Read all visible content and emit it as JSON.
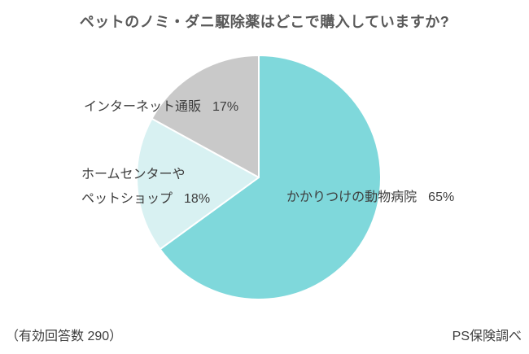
{
  "title": "ペットのノミ・ダニ駆除薬はどこで購入していますか?",
  "chart_data": {
    "type": "pie",
    "title": "ペットのノミ・ダニ駆除薬はどこで購入していますか?",
    "start_angle_deg": 0,
    "direction": "clockwise",
    "start_position": "top",
    "legend": "none",
    "stroke_color": "#ffffff",
    "stroke_width": 2,
    "slices": [
      {
        "label": "かかりつけの動物病院",
        "pct_label": "65%",
        "value": 65,
        "color": "#7fd8db"
      },
      {
        "label": "ホームセンターやペットショップ",
        "label_line1": "ホームセンターや",
        "label_line2": "ペットショップ",
        "pct_label": "18%",
        "value": 18,
        "color": "#d8f1f2"
      },
      {
        "label": "インターネット通販",
        "pct_label": "17%",
        "value": 17,
        "color": "#c9c9c9"
      }
    ]
  },
  "footer": {
    "left": "（有効回答数 290）",
    "right": "PS保険調べ"
  }
}
